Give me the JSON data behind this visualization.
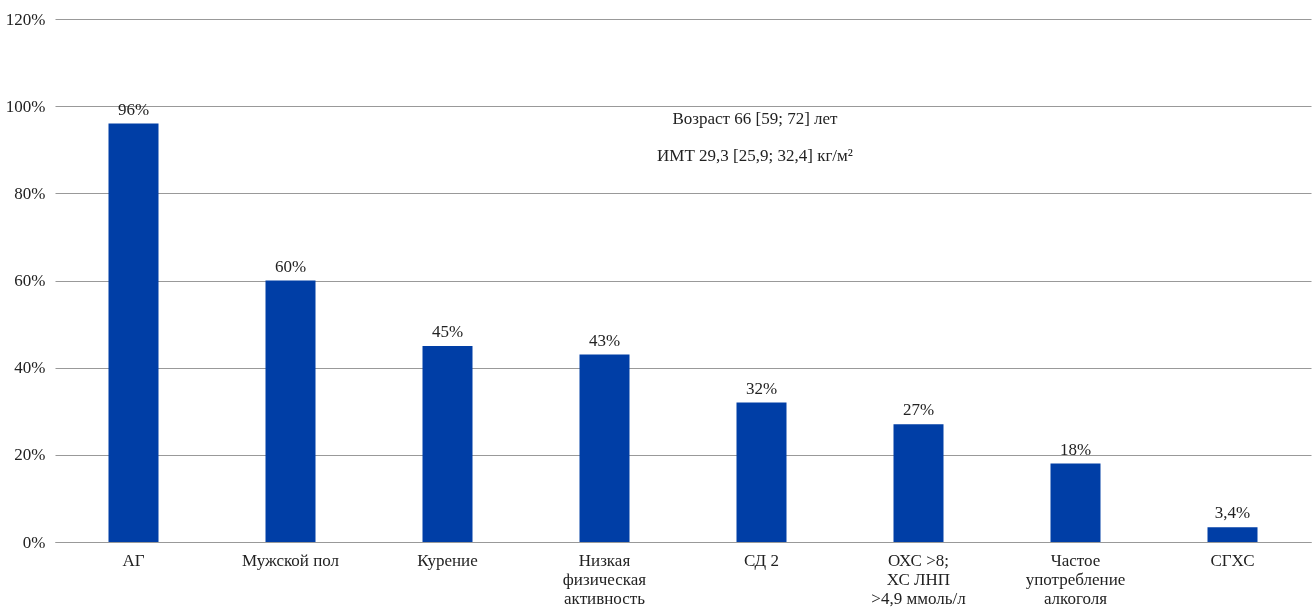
{
  "chart_data": {
    "type": "bar",
    "categories": [
      "АГ",
      "Мужской пол",
      "Курение",
      "Низкая\nфизическая\nактивность",
      "СД 2",
      "ОХС >8;\nХС ЛНП\n>4,9 ммоль/л",
      "Частое\nупотребление\nалкоголя",
      "СГХС"
    ],
    "values": [
      96,
      60,
      45,
      43,
      32,
      27,
      18,
      3.4
    ],
    "value_labels": [
      "96%",
      "60%",
      "45%",
      "43%",
      "32%",
      "27%",
      "18%",
      "3,4%"
    ],
    "color": "#003ea6",
    "ylim": [
      0,
      120
    ],
    "yticks": [
      {
        "value": 0,
        "label": "0%"
      },
      {
        "value": 20,
        "label": "20%"
      },
      {
        "value": 40,
        "label": "40%"
      },
      {
        "value": 60,
        "label": "60%"
      },
      {
        "value": 80,
        "label": "80%"
      },
      {
        "value": 100,
        "label": "100%"
      },
      {
        "value": 120,
        "label": "120%"
      }
    ],
    "grid": "y",
    "annotations": [
      "Возраст 66 [59; 72] лет",
      "ИМТ 29,3 [25,9; 32,4] кг/м²"
    ]
  }
}
